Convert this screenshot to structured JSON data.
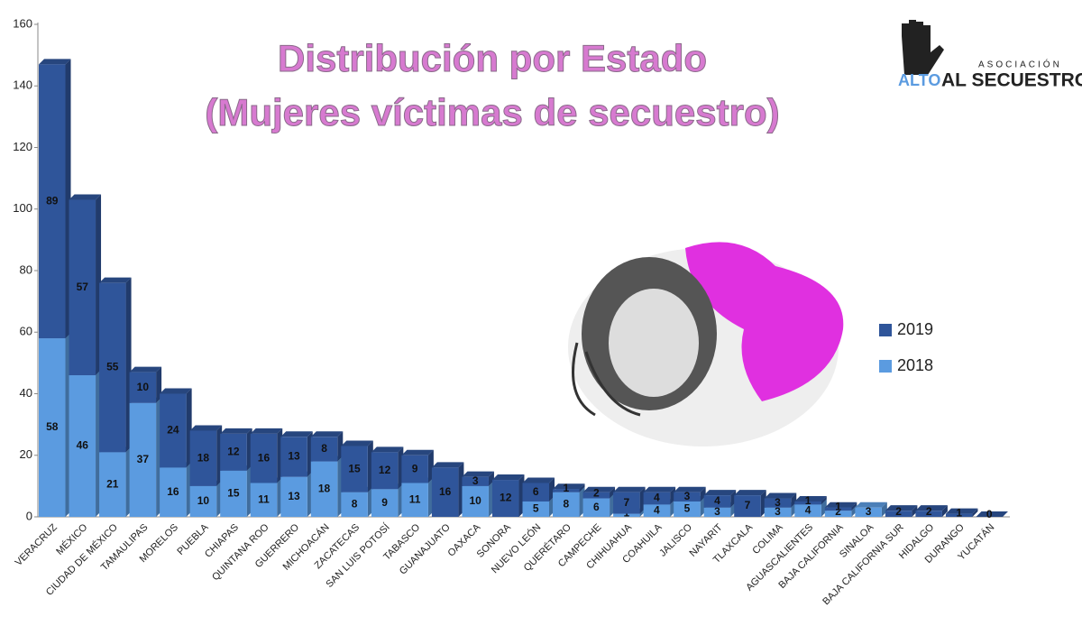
{
  "chart_data": {
    "type": "stacked-bar-3d",
    "title": "Distribución por Estado",
    "subtitle": "(Mujeres víctimas de secuestro)",
    "categories": [
      "VERACRUZ",
      "MÉXICO",
      "CIUDAD DE MÉXICO",
      "TAMAULIPAS",
      "MORELOS",
      "PUEBLA",
      "CHIAPAS",
      "QUINTANA ROO",
      "GUERRERO",
      "MICHOACÁN",
      "ZACATECAS",
      "SAN LUIS POTOSÍ",
      "TABASCO",
      "GUANAJUATO",
      "OAXACA",
      "SONORA",
      "NUEVO LEÓN",
      "QUERÉTARO",
      "CAMPECHE",
      "CHIHUAHUA",
      "COAHUILA",
      "JALISCO",
      "NAYARIT",
      "TLAXCALA",
      "COLIMA",
      "AGUASCALIENTES",
      "BAJA CALIFORNIA",
      "SINALOA",
      "BAJA CALIFORNIA SUR",
      "HIDALGO",
      "DURANGO",
      "YUCATÁN"
    ],
    "series": [
      {
        "name": "2019",
        "color": "#2f559a",
        "values": [
          89,
          57,
          55,
          10,
          24,
          18,
          12,
          16,
          13,
          8,
          15,
          12,
          9,
          16,
          3,
          12,
          6,
          1,
          2,
          7,
          4,
          3,
          4,
          7,
          3,
          1,
          1,
          null,
          2,
          2,
          1,
          0
        ]
      },
      {
        "name": "2018",
        "color": "#5b9be0",
        "values": [
          58,
          46,
          21,
          37,
          16,
          10,
          15,
          11,
          13,
          18,
          8,
          9,
          11,
          null,
          10,
          null,
          5,
          8,
          6,
          1,
          4,
          5,
          3,
          null,
          3,
          4,
          2,
          3,
          null,
          null,
          null,
          null
        ]
      }
    ],
    "ylim": [
      0,
      160
    ],
    "yticks": [
      0,
      20,
      40,
      60,
      80,
      100,
      120,
      140,
      160
    ],
    "legend": "right"
  },
  "logo": {
    "top": "ASOCIACIÓN",
    "left": "ALTO",
    "right": "AL SECUESTRO"
  }
}
